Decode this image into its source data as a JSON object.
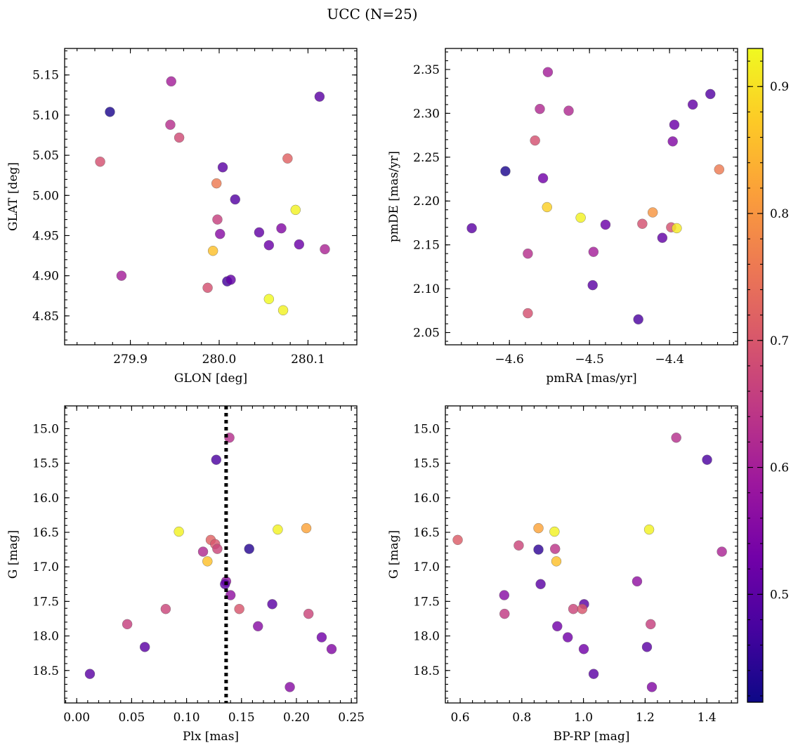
{
  "figure": {
    "title": "UCC (N=25)"
  },
  "colorbar": {
    "range": [
      0.415,
      0.93
    ],
    "ticks": [
      0.5,
      0.6,
      0.7,
      0.8,
      0.9
    ],
    "tick_labels": [
      "0.5",
      "0.6",
      "0.7",
      "0.8",
      "0.9"
    ],
    "colormap": "plasma",
    "stops": [
      "#0d0887",
      "#46039f",
      "#7201a8",
      "#9c179e",
      "#bd3786",
      "#d8576b",
      "#ed7953",
      "#fb9f3a",
      "#fdca26",
      "#f0f921"
    ]
  },
  "chart_data": [
    {
      "type": "scatter",
      "xlabel": "GLON [deg]",
      "ylabel": "GLAT [deg]",
      "xlim": [
        279.826,
        280.155
      ],
      "ylim": [
        4.814,
        5.183
      ],
      "xticks": [
        279.9,
        280.0,
        280.1
      ],
      "xtick_labels": [
        "279.9",
        "280.0",
        "280.1"
      ],
      "yticks": [
        4.85,
        4.9,
        4.95,
        5.0,
        5.05,
        5.1,
        5.15
      ],
      "ytick_labels": [
        "4.85",
        "4.90",
        "4.95",
        "5.00",
        "5.05",
        "5.10",
        "5.15"
      ],
      "points": [
        {
          "x": 279.877,
          "y": 5.104,
          "c": 0.43
        },
        {
          "x": 279.946,
          "y": 5.142,
          "c": 0.6
        },
        {
          "x": 279.945,
          "y": 5.088,
          "c": 0.63
        },
        {
          "x": 279.955,
          "y": 5.072,
          "c": 0.68
        },
        {
          "x": 279.866,
          "y": 5.042,
          "c": 0.69
        },
        {
          "x": 280.113,
          "y": 5.123,
          "c": 0.5
        },
        {
          "x": 280.004,
          "y": 5.035,
          "c": 0.5
        },
        {
          "x": 280.077,
          "y": 5.046,
          "c": 0.72
        },
        {
          "x": 279.997,
          "y": 5.015,
          "c": 0.76
        },
        {
          "x": 280.018,
          "y": 4.995,
          "c": 0.49
        },
        {
          "x": 280.086,
          "y": 4.982,
          "c": 0.92
        },
        {
          "x": 279.998,
          "y": 4.97,
          "c": 0.66
        },
        {
          "x": 280.001,
          "y": 4.952,
          "c": 0.56
        },
        {
          "x": 280.045,
          "y": 4.954,
          "c": 0.51
        },
        {
          "x": 280.07,
          "y": 4.959,
          "c": 0.55
        },
        {
          "x": 280.056,
          "y": 4.938,
          "c": 0.52
        },
        {
          "x": 280.09,
          "y": 4.939,
          "c": 0.52
        },
        {
          "x": 280.119,
          "y": 4.933,
          "c": 0.61
        },
        {
          "x": 279.993,
          "y": 4.931,
          "c": 0.86
        },
        {
          "x": 279.89,
          "y": 4.9,
          "c": 0.6
        },
        {
          "x": 279.987,
          "y": 4.885,
          "c": 0.69
        },
        {
          "x": 280.009,
          "y": 4.893,
          "c": 0.47
        },
        {
          "x": 280.013,
          "y": 4.895,
          "c": 0.51
        },
        {
          "x": 280.056,
          "y": 4.871,
          "c": 0.93
        },
        {
          "x": 280.072,
          "y": 4.857,
          "c": 0.92
        }
      ]
    },
    {
      "type": "scatter",
      "xlabel": "pmRA [mas/yr]",
      "ylabel": "pmDE [mas/yr]",
      "xlim": [
        -4.68,
        -4.315
      ],
      "ylim": [
        2.036,
        2.374
      ],
      "xticks": [
        -4.6,
        -4.5,
        -4.4
      ],
      "xtick_labels": [
        "−4.6",
        "−4.5",
        "−4.4"
      ],
      "yticks": [
        2.05,
        2.1,
        2.15,
        2.2,
        2.25,
        2.3,
        2.35
      ],
      "ytick_labels": [
        "2.05",
        "2.10",
        "2.15",
        "2.20",
        "2.25",
        "2.30",
        "2.35"
      ],
      "points": [
        {
          "x": -4.552,
          "y": 2.347,
          "c": 0.6
        },
        {
          "x": -4.349,
          "y": 2.322,
          "c": 0.49
        },
        {
          "x": -4.562,
          "y": 2.305,
          "c": 0.62
        },
        {
          "x": -4.526,
          "y": 2.303,
          "c": 0.62
        },
        {
          "x": -4.371,
          "y": 2.31,
          "c": 0.51
        },
        {
          "x": -4.394,
          "y": 2.287,
          "c": 0.52
        },
        {
          "x": -4.568,
          "y": 2.269,
          "c": 0.69
        },
        {
          "x": -4.396,
          "y": 2.268,
          "c": 0.55
        },
        {
          "x": -4.338,
          "y": 2.236,
          "c": 0.76
        },
        {
          "x": -4.605,
          "y": 2.234,
          "c": 0.43
        },
        {
          "x": -4.558,
          "y": 2.226,
          "c": 0.53
        },
        {
          "x": -4.553,
          "y": 2.193,
          "c": 0.88
        },
        {
          "x": -4.511,
          "y": 2.181,
          "c": 0.92
        },
        {
          "x": -4.421,
          "y": 2.187,
          "c": 0.8
        },
        {
          "x": -4.48,
          "y": 2.173,
          "c": 0.52
        },
        {
          "x": -4.434,
          "y": 2.174,
          "c": 0.69
        },
        {
          "x": -4.398,
          "y": 2.17,
          "c": 0.69
        },
        {
          "x": -4.391,
          "y": 2.169,
          "c": 0.91
        },
        {
          "x": -4.647,
          "y": 2.169,
          "c": 0.5
        },
        {
          "x": -4.409,
          "y": 2.158,
          "c": 0.51
        },
        {
          "x": -4.577,
          "y": 2.14,
          "c": 0.63
        },
        {
          "x": -4.495,
          "y": 2.142,
          "c": 0.6
        },
        {
          "x": -4.496,
          "y": 2.104,
          "c": 0.5
        },
        {
          "x": -4.577,
          "y": 2.072,
          "c": 0.69
        },
        {
          "x": -4.439,
          "y": 2.065,
          "c": 0.48
        }
      ]
    },
    {
      "type": "scatter",
      "xlabel": "Plx [mas]",
      "ylabel": "G [mag]",
      "xlim": [
        -0.011,
        0.255
      ],
      "ylim": [
        18.97,
        14.67
      ],
      "y_inverted": true,
      "xticks": [
        0.0,
        0.05,
        0.1,
        0.15,
        0.2,
        0.25
      ],
      "xtick_labels": [
        "0.00",
        "0.05",
        "0.10",
        "0.15",
        "0.20",
        "0.25"
      ],
      "yticks": [
        15.0,
        15.5,
        16.0,
        16.5,
        17.0,
        17.5,
        18.0,
        18.5
      ],
      "ytick_labels": [
        "15.0",
        "15.5",
        "16.0",
        "16.5",
        "17.0",
        "17.5",
        "18.0",
        "18.5"
      ],
      "vline": {
        "x": 0.136,
        "style": "dotted"
      },
      "points": [
        {
          "x": 0.139,
          "y": 15.13,
          "c": 0.63
        },
        {
          "x": 0.127,
          "y": 15.45,
          "c": 0.48
        },
        {
          "x": 0.093,
          "y": 16.49,
          "c": 0.92
        },
        {
          "x": 0.183,
          "y": 16.46,
          "c": 0.92
        },
        {
          "x": 0.209,
          "y": 16.44,
          "c": 0.82
        },
        {
          "x": 0.122,
          "y": 16.61,
          "c": 0.72
        },
        {
          "x": 0.126,
          "y": 16.67,
          "c": 0.7
        },
        {
          "x": 0.128,
          "y": 16.74,
          "c": 0.67
        },
        {
          "x": 0.115,
          "y": 16.78,
          "c": 0.62
        },
        {
          "x": 0.157,
          "y": 16.74,
          "c": 0.44
        },
        {
          "x": 0.119,
          "y": 16.92,
          "c": 0.86
        },
        {
          "x": 0.136,
          "y": 17.21,
          "c": 0.57
        },
        {
          "x": 0.135,
          "y": 17.25,
          "c": 0.5
        },
        {
          "x": 0.14,
          "y": 17.41,
          "c": 0.57
        },
        {
          "x": 0.081,
          "y": 17.61,
          "c": 0.67
        },
        {
          "x": 0.148,
          "y": 17.61,
          "c": 0.7
        },
        {
          "x": 0.178,
          "y": 17.54,
          "c": 0.5
        },
        {
          "x": 0.211,
          "y": 17.68,
          "c": 0.67
        },
        {
          "x": 0.046,
          "y": 17.83,
          "c": 0.66
        },
        {
          "x": 0.165,
          "y": 17.86,
          "c": 0.56
        },
        {
          "x": 0.223,
          "y": 18.02,
          "c": 0.53
        },
        {
          "x": 0.062,
          "y": 18.16,
          "c": 0.5
        },
        {
          "x": 0.232,
          "y": 18.19,
          "c": 0.55
        },
        {
          "x": 0.012,
          "y": 18.55,
          "c": 0.5
        },
        {
          "x": 0.194,
          "y": 18.74,
          "c": 0.56
        }
      ]
    },
    {
      "type": "scatter",
      "xlabel": "BP-RP [mag]",
      "ylabel": "G [mag]",
      "xlim": [
        0.552,
        1.5
      ],
      "ylim": [
        18.97,
        14.67
      ],
      "y_inverted": true,
      "xticks": [
        0.6,
        0.8,
        1.0,
        1.2,
        1.4
      ],
      "xtick_labels": [
        "0.6",
        "0.8",
        "1.0",
        "1.2",
        "1.4"
      ],
      "yticks": [
        15.0,
        15.5,
        16.0,
        16.5,
        17.0,
        17.5,
        18.0,
        18.5
      ],
      "ytick_labels": [
        "15.0",
        "15.5",
        "16.0",
        "16.5",
        "17.0",
        "17.5",
        "18.0",
        "18.5"
      ],
      "points": [
        {
          "x": 1.301,
          "y": 15.13,
          "c": 0.63
        },
        {
          "x": 1.401,
          "y": 15.45,
          "c": 0.48
        },
        {
          "x": 0.592,
          "y": 16.61,
          "c": 0.71
        },
        {
          "x": 0.854,
          "y": 16.44,
          "c": 0.82
        },
        {
          "x": 0.906,
          "y": 16.49,
          "c": 0.92
        },
        {
          "x": 1.213,
          "y": 16.46,
          "c": 0.92
        },
        {
          "x": 0.79,
          "y": 16.69,
          "c": 0.67
        },
        {
          "x": 0.854,
          "y": 16.75,
          "c": 0.45
        },
        {
          "x": 0.908,
          "y": 16.74,
          "c": 0.64
        },
        {
          "x": 1.449,
          "y": 16.78,
          "c": 0.61
        },
        {
          "x": 0.912,
          "y": 16.92,
          "c": 0.86
        },
        {
          "x": 0.861,
          "y": 17.25,
          "c": 0.5
        },
        {
          "x": 1.174,
          "y": 17.21,
          "c": 0.57
        },
        {
          "x": 0.743,
          "y": 17.41,
          "c": 0.56
        },
        {
          "x": 1.002,
          "y": 17.54,
          "c": 0.5
        },
        {
          "x": 0.967,
          "y": 17.61,
          "c": 0.67
        },
        {
          "x": 0.996,
          "y": 17.61,
          "c": 0.7
        },
        {
          "x": 0.744,
          "y": 17.68,
          "c": 0.65
        },
        {
          "x": 1.218,
          "y": 17.83,
          "c": 0.66
        },
        {
          "x": 0.915,
          "y": 17.86,
          "c": 0.53
        },
        {
          "x": 0.949,
          "y": 18.02,
          "c": 0.53
        },
        {
          "x": 1.206,
          "y": 18.16,
          "c": 0.5
        },
        {
          "x": 1.001,
          "y": 18.19,
          "c": 0.53
        },
        {
          "x": 1.033,
          "y": 18.55,
          "c": 0.5
        },
        {
          "x": 1.222,
          "y": 18.74,
          "c": 0.55
        }
      ]
    }
  ]
}
